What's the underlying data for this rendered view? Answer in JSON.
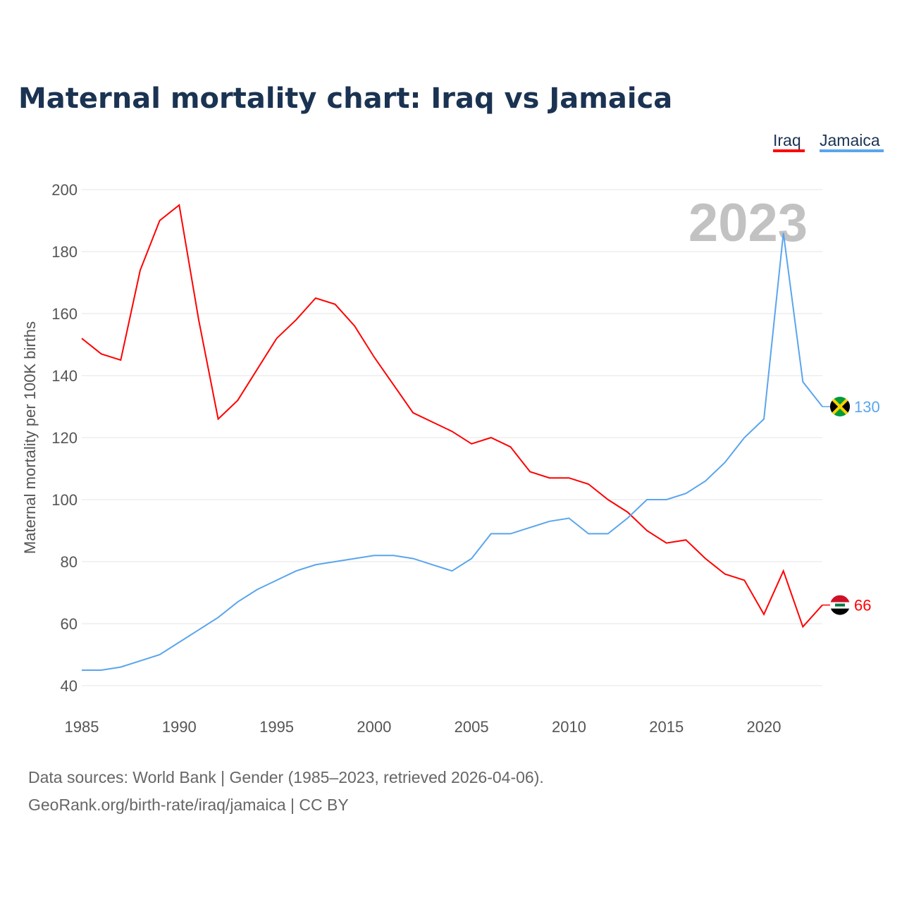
{
  "chart_data": {
    "type": "line",
    "title": "Maternal mortality chart: Iraq vs Jamaica",
    "ylabel": "Maternal mortality per 100K births",
    "xlabel": "",
    "xlim": [
      1985,
      2023
    ],
    "ylim": [
      40,
      200
    ],
    "yticks": [
      40,
      60,
      80,
      100,
      120,
      140,
      160,
      180,
      200
    ],
    "xticks": [
      1985,
      1990,
      1995,
      2000,
      2005,
      2010,
      2015,
      2020
    ],
    "grid": true,
    "legend_position": "top-right",
    "year_label": "2023",
    "x": [
      1985,
      1986,
      1987,
      1988,
      1989,
      1990,
      1991,
      1992,
      1993,
      1994,
      1995,
      1996,
      1997,
      1998,
      1999,
      2000,
      2001,
      2002,
      2003,
      2004,
      2005,
      2006,
      2007,
      2008,
      2009,
      2010,
      2011,
      2012,
      2013,
      2014,
      2015,
      2016,
      2017,
      2018,
      2019,
      2020,
      2021,
      2022,
      2023
    ],
    "series": [
      {
        "name": "Iraq",
        "color": "#ff0000",
        "end_label": "66",
        "flag": "iraq-flag",
        "values": [
          152,
          147,
          145,
          174,
          190,
          195,
          158,
          126,
          132,
          142,
          152,
          158,
          165,
          163,
          156,
          146,
          137,
          128,
          125,
          122,
          118,
          120,
          117,
          109,
          107,
          107,
          105,
          100,
          96,
          90,
          86,
          87,
          81,
          76,
          74,
          63,
          77,
          59,
          66
        ]
      },
      {
        "name": "Jamaica",
        "color": "#5aa5ee",
        "end_label": "130",
        "flag": "jamaica-flag",
        "values": [
          45,
          45,
          46,
          48,
          50,
          54,
          58,
          62,
          67,
          71,
          74,
          77,
          79,
          80,
          81,
          82,
          82,
          81,
          79,
          77,
          81,
          89,
          89,
          91,
          93,
          94,
          89,
          89,
          94,
          100,
          100,
          102,
          106,
          112,
          120,
          126,
          186,
          138,
          130
        ]
      }
    ]
  },
  "footer": {
    "line1": "Data sources: World Bank | Gender (1985–2023, retrieved 2026-04-06).",
    "line2": "GeoRank.org/birth-rate/iraq/jamaica | CC BY"
  }
}
